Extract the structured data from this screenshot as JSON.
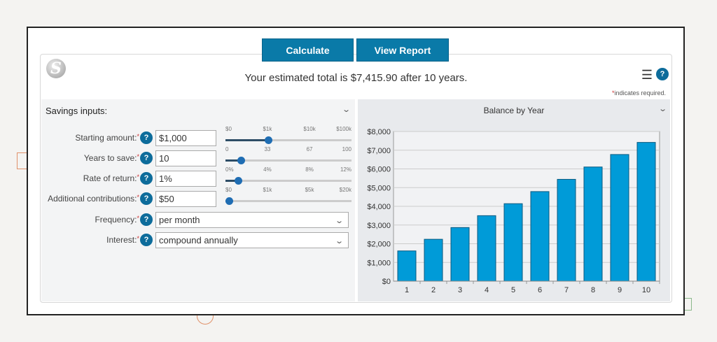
{
  "toolbar": {
    "calculate_label": "Calculate",
    "view_report_label": "View Report"
  },
  "header": {
    "summary": "Your estimated total is $7,415.90 after 10 years.",
    "required_note_mark": "*",
    "required_note": "indicates required.",
    "logo_text": "S",
    "help": "?",
    "menu_icon": "hamburger-menu-icon"
  },
  "inputs": {
    "title": "Savings inputs:",
    "fields": [
      {
        "label": "Starting amount:",
        "value": "$1,000",
        "ticks": [
          "$0",
          "$1k",
          "$10k",
          "$100k"
        ],
        "slider_position_pct": 34
      },
      {
        "label": "Years to save:",
        "value": "10",
        "ticks": [
          "0",
          "33",
          "67",
          "100"
        ],
        "slider_position_pct": 12
      },
      {
        "label": "Rate of return:",
        "value": "1%",
        "ticks": [
          "0%",
          "4%",
          "8%",
          "12%"
        ],
        "slider_position_pct": 10
      },
      {
        "label": "Additional contributions:",
        "value": "$50",
        "ticks": [
          "$0",
          "$1k",
          "$5k",
          "$20k"
        ],
        "slider_position_pct": 3
      }
    ],
    "frequency": {
      "label": "Frequency:",
      "value": "per month"
    },
    "interest": {
      "label": "Interest:",
      "value": "compound annually"
    },
    "required_mark": "*",
    "help": "?"
  },
  "chart_data": {
    "type": "bar",
    "title": "Balance by Year",
    "categories": [
      "1",
      "2",
      "3",
      "4",
      "5",
      "6",
      "7",
      "8",
      "9",
      "10"
    ],
    "values": [
      1616,
      2238,
      2866,
      3500,
      4141,
      4788,
      5442,
      6102,
      6769,
      7416
    ],
    "ylim": [
      0,
      8000
    ],
    "yticks": [
      "$0",
      "$1,000",
      "$2,000",
      "$3,000",
      "$4,000",
      "$5,000",
      "$6,000",
      "$7,000",
      "$8,000"
    ],
    "grid": true,
    "bar_color": "#009bd8",
    "xlabel": "",
    "ylabel": ""
  },
  "colors": {
    "button": "#0a7aa8",
    "help": "#0d6c9b",
    "slider_knob": "#1f6db3"
  }
}
